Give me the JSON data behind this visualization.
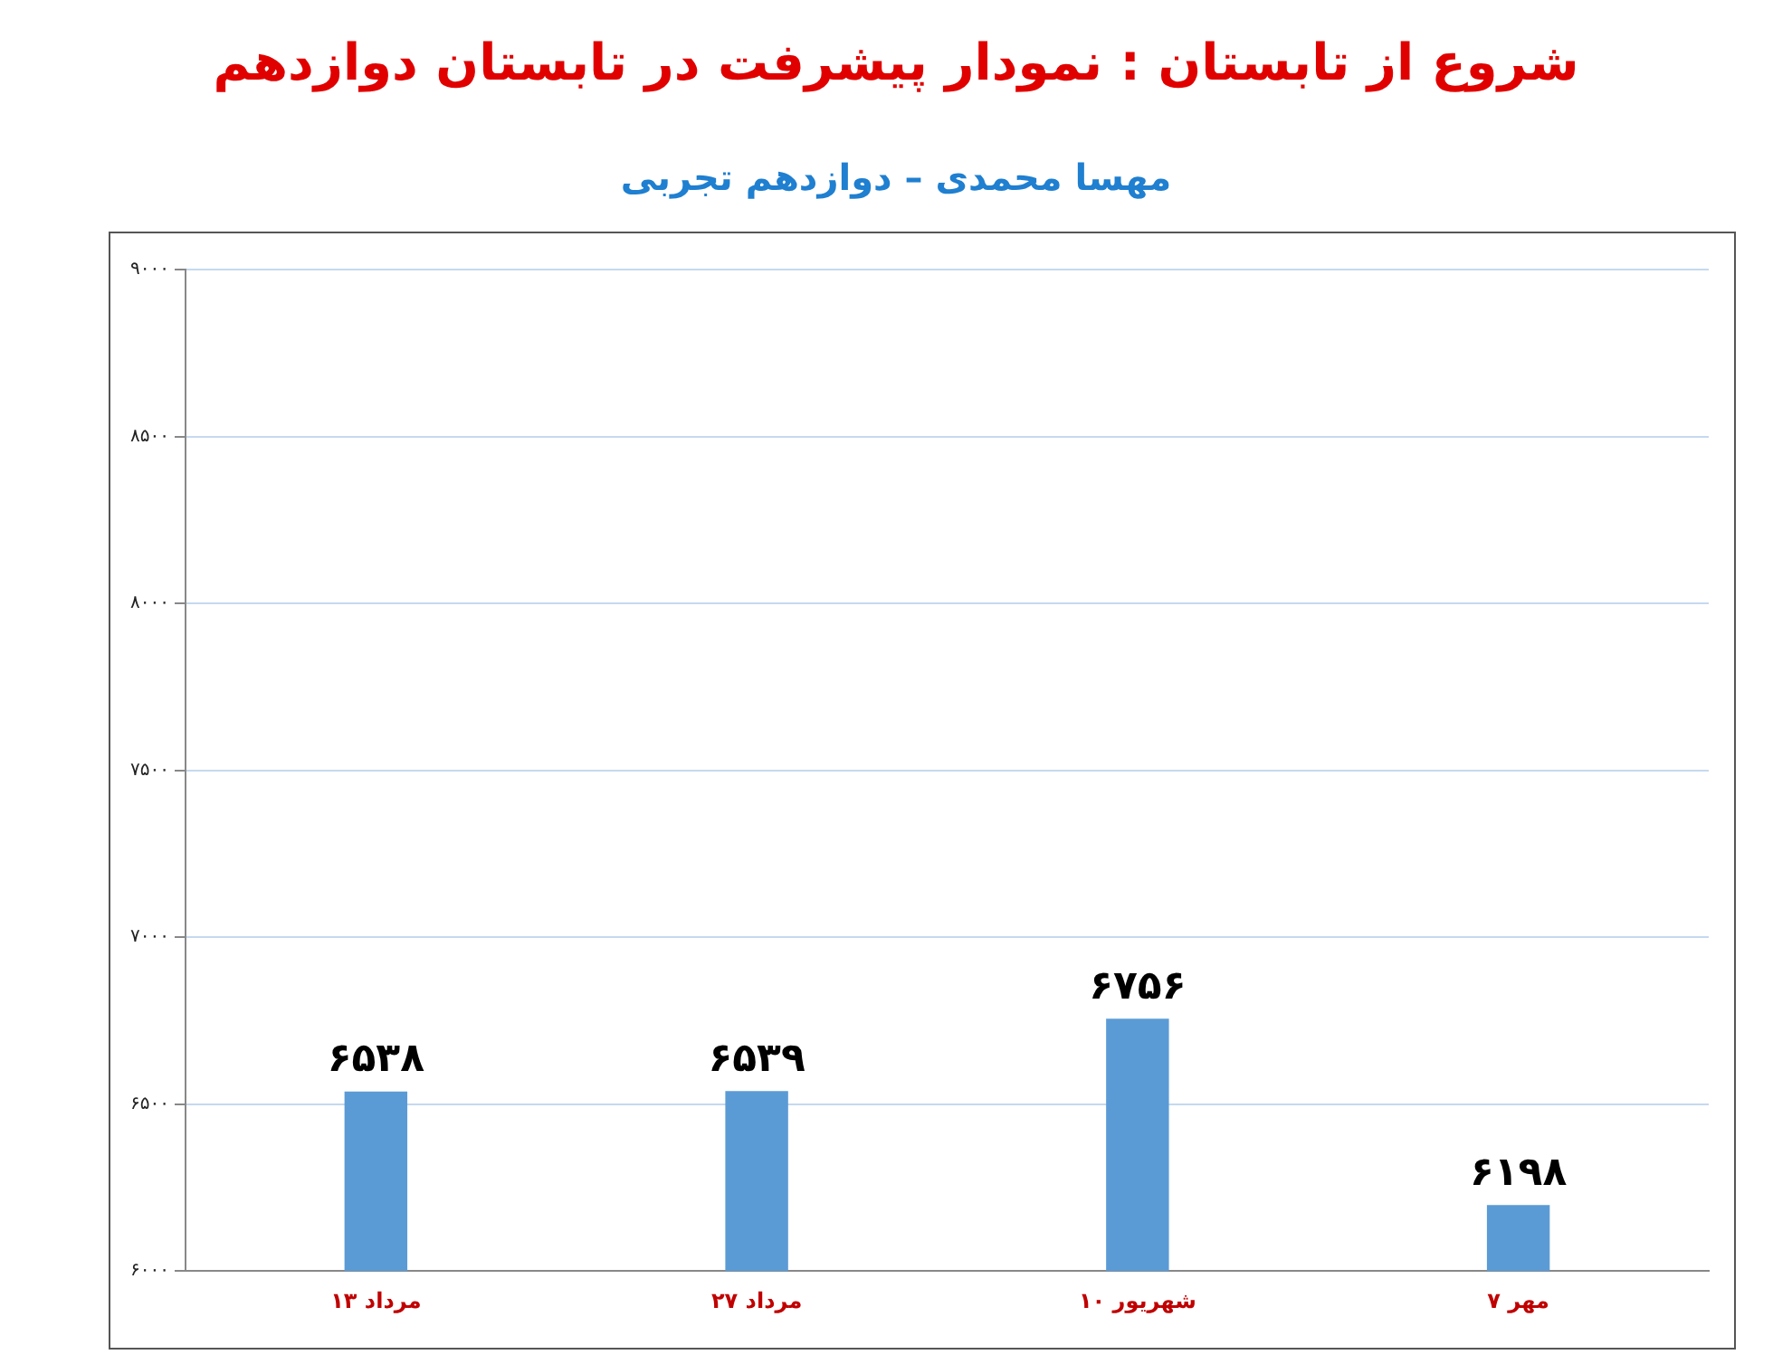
{
  "chart_data": {
    "type": "bar",
    "title": "شروع از تابستان : نمودار پیشرفت در تابستان دوازدهم",
    "subtitle": "مهسا محمدی – دوازدهم تجربی",
    "categories": [
      "۱۳ مرداد",
      "۲۷ مرداد",
      "۱۰ شهریور",
      "۷ مهر"
    ],
    "values": [
      6538,
      6539,
      6756,
      6198
    ],
    "value_labels": [
      "۶۵۳۸",
      "۶۵۳۹",
      "۶۷۵۶",
      "۶۱۹۸"
    ],
    "color": "#5b9bd5",
    "ylim": [
      6000,
      9000
    ],
    "yticks": [
      {
        "value": 6000,
        "label": "۶۰۰۰"
      },
      {
        "value": 6500,
        "label": "۶۵۰۰"
      },
      {
        "value": 7000,
        "label": "۷۰۰۰"
      },
      {
        "value": 7500,
        "label": "۷۵۰۰"
      },
      {
        "value": 8000,
        "label": "۸۰۰۰"
      },
      {
        "value": 8500,
        "label": "۸۵۰۰"
      },
      {
        "value": 9000,
        "label": "۹۰۰۰"
      }
    ],
    "grid": "y"
  }
}
